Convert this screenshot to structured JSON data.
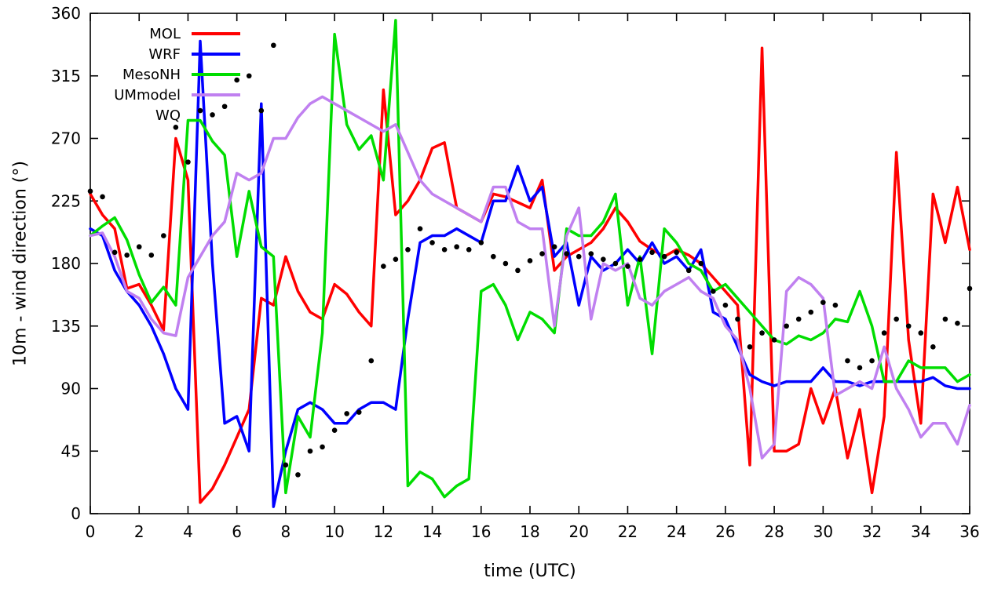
{
  "chart_data": {
    "type": "line",
    "title": "",
    "xlabel": "time (UTC)",
    "ylabel": "10m - wind direction (°)",
    "xlim": [
      0,
      36
    ],
    "ylim": [
      0,
      360
    ],
    "xticks": [
      0,
      2,
      4,
      6,
      8,
      10,
      12,
      14,
      16,
      18,
      20,
      22,
      24,
      26,
      28,
      30,
      32,
      34,
      36
    ],
    "yticks": [
      0,
      45,
      90,
      135,
      180,
      225,
      270,
      315,
      360
    ],
    "grid": false,
    "legend_position": "top-left-inside",
    "x_step": 0.5,
    "series": [
      {
        "name": "MOL",
        "color": "#ff0000",
        "style": "line",
        "x": [
          0,
          0.5,
          1,
          1.5,
          2,
          2.5,
          3,
          3.5,
          4,
          4.5,
          5,
          5.5,
          6,
          6.5,
          7,
          7.5,
          8,
          8.5,
          9,
          9.5,
          10,
          10.5,
          11,
          11.5,
          12,
          12.5,
          13,
          13.5,
          14,
          14.5,
          15,
          15.5,
          16,
          16.5,
          17,
          17.5,
          18,
          18.5,
          19,
          19.5,
          20,
          20.5,
          21,
          21.5,
          22,
          22.5,
          23,
          23.5,
          24,
          24.5,
          25,
          25.5,
          26,
          26.5,
          27,
          27.5,
          28,
          28.5,
          29,
          29.5,
          30,
          30.5,
          31,
          31.5,
          32,
          32.5,
          33,
          33.5,
          34,
          34.5,
          35,
          35.5,
          36
        ],
        "y": [
          230,
          215,
          205,
          162,
          165,
          150,
          132,
          270,
          240,
          8,
          18,
          35,
          55,
          75,
          155,
          150,
          185,
          160,
          145,
          140,
          165,
          158,
          145,
          135,
          305,
          215,
          225,
          240,
          263,
          267,
          220,
          215,
          210,
          230,
          228,
          224,
          220,
          240,
          175,
          185,
          190,
          195,
          205,
          220,
          210,
          196,
          190,
          185,
          190,
          186,
          180,
          170,
          160,
          150,
          35,
          335,
          45,
          45,
          50,
          90,
          65,
          90,
          40,
          75,
          15,
          70,
          260,
          125,
          65,
          230,
          195,
          235,
          190
        ]
      },
      {
        "name": "WRF",
        "color": "#0000ff",
        "style": "line",
        "x": [
          0,
          0.5,
          1,
          1.5,
          2,
          2.5,
          3,
          3.5,
          4,
          4.5,
          5,
          5.5,
          6,
          6.5,
          7,
          7.5,
          8,
          8.5,
          9,
          9.5,
          10,
          10.5,
          11,
          11.5,
          12,
          12.5,
          13,
          13.5,
          14,
          14.5,
          15,
          15.5,
          16,
          16.5,
          17,
          17.5,
          18,
          18.5,
          19,
          19.5,
          20,
          20.5,
          21,
          21.5,
          22,
          22.5,
          23,
          23.5,
          24,
          24.5,
          25,
          25.5,
          26,
          26.5,
          27,
          27.5,
          28,
          28.5,
          29,
          29.5,
          30,
          30.5,
          31,
          31.5,
          32,
          32.5,
          33,
          33.5,
          34,
          34.5,
          35,
          35.5,
          36
        ],
        "y": [
          205,
          200,
          175,
          160,
          150,
          135,
          115,
          90,
          75,
          340,
          180,
          65,
          70,
          45,
          295,
          5,
          45,
          75,
          80,
          75,
          65,
          65,
          75,
          80,
          80,
          75,
          140,
          195,
          200,
          200,
          205,
          200,
          195,
          225,
          225,
          250,
          225,
          235,
          185,
          195,
          150,
          185,
          175,
          180,
          190,
          180,
          195,
          180,
          185,
          175,
          190,
          145,
          140,
          120,
          100,
          95,
          92,
          95,
          95,
          95,
          105,
          95,
          95,
          92,
          95,
          95,
          95,
          95,
          95,
          98,
          92,
          90,
          90
        ]
      },
      {
        "name": "MesoNH",
        "color": "#00dd00",
        "style": "line",
        "x": [
          0,
          0.5,
          1,
          1.5,
          2,
          2.5,
          3,
          3.5,
          4,
          4.5,
          5,
          5.5,
          6,
          6.5,
          7,
          7.5,
          8,
          8.5,
          9,
          9.5,
          10,
          10.5,
          11,
          11.5,
          12,
          12.5,
          13,
          13.5,
          14,
          14.5,
          15,
          15.5,
          16,
          16.5,
          17,
          17.5,
          18,
          18.5,
          19,
          19.5,
          20,
          20.5,
          21,
          21.5,
          22,
          22.5,
          23,
          23.5,
          24,
          24.5,
          25,
          25.5,
          26,
          26.5,
          27,
          27.5,
          28,
          28.5,
          29,
          29.5,
          30,
          30.5,
          31,
          31.5,
          32,
          32.5,
          33,
          33.5,
          34,
          34.5,
          35,
          35.5,
          36
        ],
        "y": [
          200,
          207,
          213,
          197,
          172,
          152,
          163,
          150,
          283,
          283,
          268,
          258,
          185,
          232,
          192,
          185,
          15,
          70,
          55,
          130,
          345,
          280,
          262,
          272,
          240,
          355,
          20,
          30,
          25,
          12,
          20,
          25,
          160,
          165,
          150,
          125,
          145,
          140,
          130,
          205,
          200,
          200,
          210,
          230,
          150,
          185,
          115,
          205,
          195,
          180,
          175,
          160,
          165,
          155,
          145,
          135,
          125,
          122,
          128,
          125,
          130,
          140,
          138,
          160,
          135,
          95,
          95,
          110,
          105,
          105,
          105,
          95,
          100
        ]
      },
      {
        "name": "UMmodel",
        "color": "#c080f0",
        "style": "line",
        "x": [
          0,
          0.5,
          1,
          1.5,
          2,
          2.5,
          3,
          3.5,
          4,
          4.5,
          5,
          5.5,
          6,
          6.5,
          7,
          7.5,
          8,
          8.5,
          9,
          9.5,
          10,
          10.5,
          11,
          11.5,
          12,
          12.5,
          13,
          13.5,
          14,
          14.5,
          15,
          15.5,
          16,
          16.5,
          17,
          17.5,
          18,
          18.5,
          19,
          19.5,
          20,
          20.5,
          21,
          21.5,
          22,
          22.5,
          23,
          23.5,
          24,
          24.5,
          25,
          25.5,
          26,
          26.5,
          27,
          27.5,
          28,
          28.5,
          29,
          29.5,
          30,
          30.5,
          31,
          31.5,
          32,
          32.5,
          33,
          33.5,
          34,
          34.5,
          35,
          35.5,
          36
        ],
        "y": [
          200,
          202,
          185,
          160,
          155,
          140,
          130,
          128,
          170,
          185,
          200,
          210,
          245,
          240,
          245,
          270,
          270,
          285,
          295,
          300,
          295,
          290,
          285,
          280,
          275,
          280,
          260,
          240,
          230,
          225,
          220,
          215,
          210,
          235,
          235,
          210,
          205,
          205,
          135,
          200,
          220,
          140,
          180,
          175,
          180,
          155,
          150,
          160,
          165,
          170,
          160,
          155,
          135,
          125,
          90,
          40,
          50,
          160,
          170,
          165,
          155,
          85,
          90,
          95,
          90,
          120,
          90,
          75,
          55,
          65,
          65,
          50,
          78
        ]
      },
      {
        "name": "WQ",
        "color": "#000000",
        "style": "points",
        "x": [
          0,
          0.5,
          1,
          1.5,
          2,
          2.5,
          3,
          3.5,
          4,
          4.5,
          5,
          5.5,
          6,
          6.5,
          7,
          7.5,
          8,
          8.5,
          9,
          9.5,
          10,
          10.5,
          11,
          11.5,
          12,
          12.5,
          13,
          13.5,
          14,
          14.5,
          15,
          15.5,
          16,
          16.5,
          17,
          17.5,
          18,
          18.5,
          19,
          19.5,
          20,
          20.5,
          21,
          21.5,
          22,
          22.5,
          23,
          23.5,
          24,
          24.5,
          25,
          25.5,
          26,
          26.5,
          27,
          27.5,
          28,
          28.5,
          29,
          29.5,
          30,
          30.5,
          31,
          31.5,
          32,
          32.5,
          33,
          33.5,
          34,
          34.5,
          35,
          35.5,
          36
        ],
        "y": [
          232,
          228,
          188,
          186,
          192,
          186,
          200,
          278,
          253,
          290,
          287,
          293,
          312,
          315,
          290,
          337,
          35,
          28,
          45,
          48,
          60,
          72,
          73,
          110,
          178,
          183,
          190,
          205,
          195,
          190,
          192,
          190,
          195,
          185,
          180,
          175,
          182,
          187,
          192,
          187,
          185,
          187,
          183,
          180,
          178,
          183,
          188,
          185,
          188,
          175,
          180,
          160,
          150,
          140,
          120,
          130,
          125,
          135,
          140,
          145,
          152,
          150,
          110,
          105,
          110,
          130,
          140,
          135,
          130,
          120,
          140,
          137,
          162
        ]
      }
    ]
  }
}
